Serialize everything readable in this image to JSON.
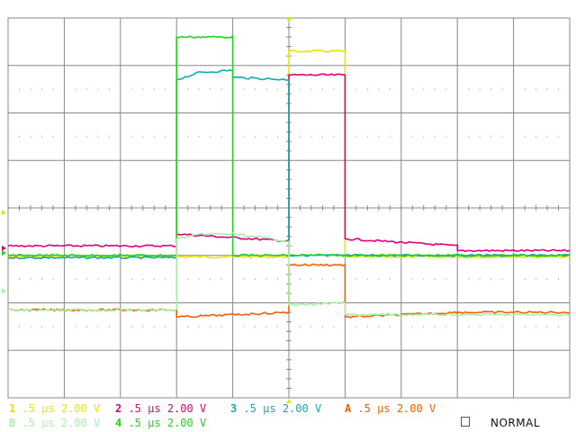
{
  "scope": {
    "mode": "NORMAL",
    "channels": [
      {
        "id": "1",
        "timebase": ".5 μs",
        "volts": "2.00 V",
        "color": "#e6e600"
      },
      {
        "id": "2",
        "timebase": ".5 μs",
        "volts": "2.00 V",
        "color": "#e0007a"
      },
      {
        "id": "3",
        "timebase": ".5 μs",
        "volts": "2.00 V",
        "color": "#14a8b8"
      },
      {
        "id": "A",
        "timebase": ".5 μs",
        "volts": "2.00 V",
        "color": "#f06000"
      },
      {
        "id": "B",
        "timebase": ".5 μs",
        "volts": "2.00 V",
        "color": "#a8f0a8"
      },
      {
        "id": "4",
        "timebase": ".5 μs",
        "volts": "2.00 V",
        "color": "#1ed21e"
      }
    ],
    "colors": {
      "grid": "#888888",
      "background": "#ffffff"
    }
  },
  "chart_data": {
    "type": "line",
    "grid": true,
    "divisions": {
      "x": 10,
      "y": 8
    },
    "x_unit": "div",
    "y_unit": "div",
    "series": [
      {
        "ref": "1",
        "color": "#e6e600",
        "points": [
          [
            0,
            2.97
          ],
          [
            5,
            2.97
          ],
          [
            5,
            7.3
          ],
          [
            6,
            7.3
          ],
          [
            6,
            2.97
          ],
          [
            10,
            2.97
          ]
        ]
      },
      {
        "ref": "2",
        "color": "#e0007a",
        "points": [
          [
            0,
            3.2
          ],
          [
            3,
            3.2
          ],
          [
            3,
            3.45
          ],
          [
            5,
            3.3
          ],
          [
            5,
            6.8
          ],
          [
            6,
            6.8
          ],
          [
            6,
            3.35
          ],
          [
            8,
            3.2
          ],
          [
            8,
            3.1
          ],
          [
            10,
            3.1
          ]
        ]
      },
      {
        "ref": "3",
        "color": "#14a8b8",
        "points": [
          [
            0,
            2.95
          ],
          [
            3,
            2.95
          ],
          [
            3,
            6.7
          ],
          [
            3.4,
            6.85
          ],
          [
            4,
            6.9
          ],
          [
            4,
            6.75
          ],
          [
            5,
            6.7
          ],
          [
            5,
            3.0
          ],
          [
            10,
            3.0
          ]
        ]
      },
      {
        "ref": "4",
        "color": "#1ed21e",
        "points": [
          [
            0,
            3.0
          ],
          [
            3,
            3.0
          ],
          [
            3,
            7.6
          ],
          [
            4,
            7.6
          ],
          [
            4,
            3.0
          ],
          [
            10,
            3.0
          ]
        ]
      },
      {
        "ref": "A",
        "color": "#f06000",
        "points": [
          [
            0,
            1.85
          ],
          [
            3,
            1.85
          ],
          [
            3,
            1.7
          ],
          [
            5,
            1.8
          ],
          [
            5,
            2.8
          ],
          [
            6,
            2.8
          ],
          [
            6,
            1.7
          ],
          [
            8,
            1.8
          ],
          [
            8,
            1.8
          ],
          [
            10,
            1.8
          ]
        ]
      },
      {
        "ref": "B",
        "color": "#a8f0a8",
        "points": [
          [
            0,
            1.85
          ],
          [
            3,
            1.85
          ],
          [
            3,
            3.35
          ],
          [
            3.5,
            3.45
          ],
          [
            4,
            3.45
          ],
          [
            5,
            3.3
          ],
          [
            5,
            1.95
          ],
          [
            6,
            2.0
          ],
          [
            6,
            1.75
          ],
          [
            10,
            1.75
          ]
        ]
      }
    ]
  }
}
